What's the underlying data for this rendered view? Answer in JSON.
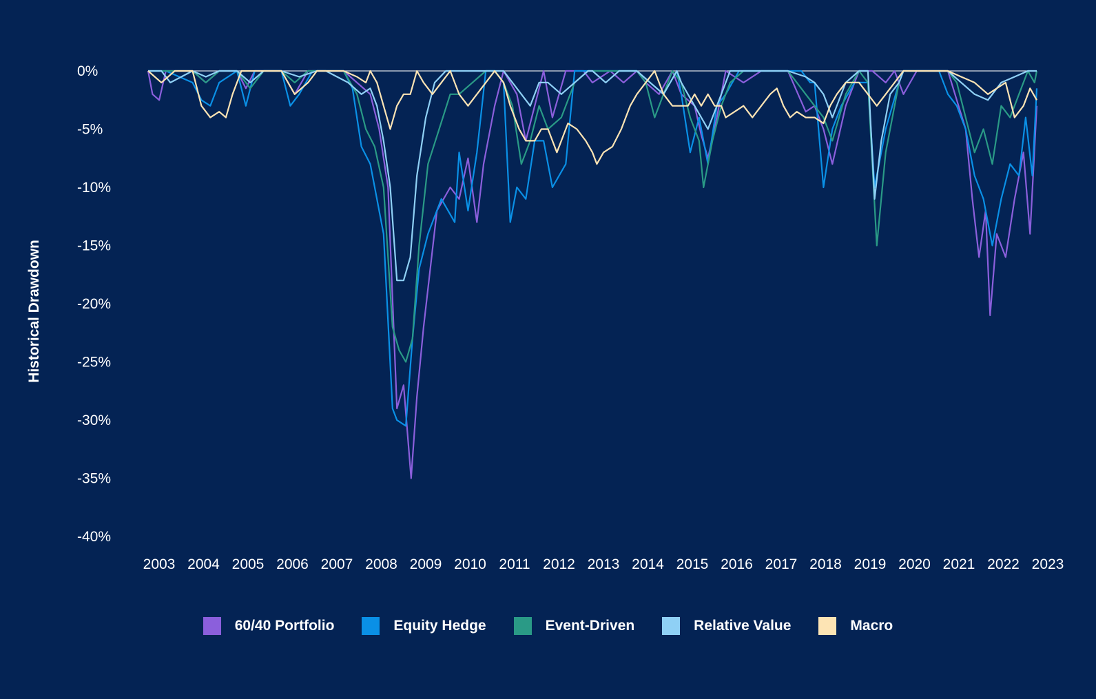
{
  "chart_data": {
    "type": "line",
    "title": "",
    "xlabel": "",
    "ylabel": "Historical Drawdown",
    "ylim": [
      -40,
      0
    ],
    "xlim": [
      2003.0,
      2023.0
    ],
    "yticks": [
      0,
      -5,
      -10,
      -15,
      -20,
      -25,
      -30,
      -35,
      -40
    ],
    "ytick_labels": [
      "0%",
      "-5%",
      "-10%",
      "-15%",
      "-20%",
      "-25%",
      "-30%",
      "-35%",
      "-40%"
    ],
    "xticks": [
      2003,
      2004,
      2005,
      2006,
      2007,
      2008,
      2009,
      2010,
      2011,
      2012,
      2013,
      2014,
      2015,
      2016,
      2017,
      2018,
      2019,
      2020,
      2021,
      2022,
      2023
    ],
    "xtick_labels": [
      "2003",
      "2004",
      "2005",
      "2006",
      "2007",
      "2008",
      "2009",
      "2010",
      "2011",
      "2012",
      "2013",
      "2014",
      "2015",
      "2016",
      "2017",
      "2018",
      "2019",
      "2020",
      "2021",
      "2022",
      "2023"
    ],
    "legend_position": "bottom-center",
    "series": [
      {
        "name": "60/40 Portfolio",
        "color": "#8b5fdc",
        "x": [
          2003.0,
          2003.1,
          2003.25,
          2003.4,
          2004.0,
          2004.3,
          2004.6,
          2005.0,
          2005.2,
          2005.4,
          2005.7,
          2006.0,
          2006.3,
          2006.6,
          2007.0,
          2007.4,
          2007.7,
          2008.0,
          2008.2,
          2008.4,
          2008.6,
          2008.75,
          2008.92,
          2009.05,
          2009.2,
          2009.5,
          2009.8,
          2010.0,
          2010.2,
          2010.4,
          2010.55,
          2010.8,
          2011.0,
          2011.3,
          2011.5,
          2011.7,
          2011.9,
          2012.1,
          2012.4,
          2012.8,
          2013.0,
          2013.4,
          2013.7,
          2014.0,
          2014.2,
          2014.5,
          2014.8,
          2015.0,
          2015.3,
          2015.45,
          2015.6,
          2015.8,
          2016.0,
          2016.4,
          2016.8,
          2017.0,
          2017.4,
          2017.8,
          2018.0,
          2018.2,
          2018.4,
          2018.7,
          2019.0,
          2019.3,
          2019.6,
          2019.8,
          2020.0,
          2020.3,
          2020.6,
          2021.0,
          2021.2,
          2021.4,
          2021.55,
          2021.7,
          2021.85,
          2021.95,
          2022.1,
          2022.3,
          2022.5,
          2022.7,
          2022.85,
          2023.0
        ],
        "values": [
          0,
          -2,
          -2.5,
          0,
          0,
          -1,
          0,
          0,
          -1.5,
          0,
          0,
          0,
          -2,
          0,
          0,
          0,
          -1,
          -2,
          -5,
          -10,
          -29,
          -27,
          -35,
          -28,
          -22,
          -12,
          -10,
          -11,
          -7.5,
          -13,
          -8,
          -3,
          0,
          -2,
          -6,
          -3,
          0,
          -4,
          0,
          0,
          -1,
          0,
          -1,
          0,
          -1,
          -2,
          0,
          -2,
          -3,
          -5.5,
          -7.5,
          -4,
          0,
          -1,
          0,
          0,
          0,
          -3.5,
          -3,
          -5,
          -8,
          -3,
          0,
          0,
          -1,
          0,
          -2,
          0,
          0,
          0,
          -2.5,
          -5,
          -11,
          -16,
          -12,
          -21,
          -14,
          -16,
          -11,
          -7,
          -14,
          -3
        ]
      },
      {
        "name": "Equity Hedge",
        "color": "#0a90e6",
        "x": [
          2003.0,
          2003.4,
          2004.0,
          2004.2,
          2004.4,
          2004.6,
          2005.0,
          2005.2,
          2005.4,
          2006.0,
          2006.2,
          2006.4,
          2006.7,
          2007.0,
          2007.4,
          2007.6,
          2007.8,
          2008.0,
          2008.3,
          2008.5,
          2008.6,
          2008.8,
          2008.95,
          2009.1,
          2009.3,
          2009.6,
          2009.9,
          2010.0,
          2010.2,
          2010.4,
          2010.6,
          2010.8,
          2011.0,
          2011.15,
          2011.3,
          2011.5,
          2011.7,
          2011.9,
          2012.1,
          2012.4,
          2012.6,
          2012.8,
          2013.0,
          2013.3,
          2013.6,
          2014.0,
          2014.3,
          2014.6,
          2014.9,
          2015.0,
          2015.2,
          2015.4,
          2015.6,
          2015.8,
          2016.0,
          2016.3,
          2016.6,
          2017.0,
          2017.4,
          2017.7,
          2017.9,
          2018.0,
          2018.2,
          2018.4,
          2018.6,
          2018.9,
          2019.2,
          2019.35,
          2019.6,
          2019.9,
          2020.0,
          2020.4,
          2020.8,
          2021.0,
          2021.2,
          2021.4,
          2021.6,
          2021.8,
          2022.0,
          2022.2,
          2022.4,
          2022.6,
          2022.75,
          2022.9,
          2023.0
        ],
        "values": [
          0,
          0,
          -1,
          -2.5,
          -3,
          -1,
          0,
          -3,
          0,
          0,
          -3,
          -2,
          0,
          0,
          0,
          -1.5,
          -6.5,
          -8,
          -14,
          -29,
          -30,
          -30.5,
          -23,
          -17,
          -14,
          -11,
          -13,
          -7,
          -12,
          -7,
          0,
          0,
          -1,
          -13,
          -10,
          -11,
          -6,
          -6,
          -10,
          -8,
          0,
          0,
          0,
          0,
          0,
          0,
          -1,
          -2,
          0,
          -2,
          -7,
          -4,
          -8,
          -3,
          -2,
          0,
          0,
          0,
          0,
          0,
          -1,
          -1,
          -10,
          -5,
          -3,
          -1,
          -1,
          -10,
          -5,
          -1,
          0,
          0,
          0,
          -2,
          -3,
          -5,
          -9,
          -11,
          -15,
          -11,
          -8,
          -9,
          -4,
          -9,
          -1.5
        ]
      },
      {
        "name": "Event-Driven",
        "color": "#2a9a86",
        "x": [
          2003.0,
          2003.4,
          2004.0,
          2004.3,
          2004.6,
          2005.0,
          2005.3,
          2005.6,
          2006.0,
          2006.3,
          2006.6,
          2007.0,
          2007.4,
          2007.7,
          2007.9,
          2008.1,
          2008.3,
          2008.5,
          2008.65,
          2008.8,
          2008.95,
          2009.1,
          2009.3,
          2009.55,
          2009.8,
          2010.0,
          2010.3,
          2010.6,
          2010.8,
          2011.0,
          2011.2,
          2011.4,
          2011.6,
          2011.8,
          2012.0,
          2012.3,
          2012.6,
          2012.9,
          2013.0,
          2013.3,
          2013.6,
          2014.0,
          2014.2,
          2014.4,
          2014.6,
          2014.8,
          2015.0,
          2015.2,
          2015.4,
          2015.5,
          2015.7,
          2015.9,
          2016.1,
          2016.4,
          2016.8,
          2017.0,
          2017.4,
          2017.8,
          2018.0,
          2018.2,
          2018.4,
          2018.7,
          2019.0,
          2019.2,
          2019.4,
          2019.6,
          2019.9,
          2020.0,
          2020.5,
          2021.0,
          2021.2,
          2021.4,
          2021.6,
          2021.8,
          2022.0,
          2022.2,
          2022.4,
          2022.6,
          2022.8,
          2022.95,
          2023.0
        ],
        "values": [
          0,
          0,
          0,
          -1,
          0,
          0,
          -1.5,
          0,
          0,
          -1,
          0,
          0,
          0,
          -2,
          -5,
          -6.5,
          -10,
          -22,
          -24,
          -25,
          -23,
          -15,
          -8,
          -5,
          -2,
          -2,
          -1,
          0,
          0,
          -1,
          -3,
          -8,
          -6,
          -3,
          -5,
          -4,
          -1,
          0,
          0,
          0,
          0,
          0,
          -1,
          -4,
          -2,
          0,
          -1,
          -4,
          -6,
          -10,
          -6,
          -3,
          -1,
          0,
          0,
          0,
          0,
          -2,
          -3,
          -4,
          -6,
          -2,
          0,
          -1,
          -15,
          -7,
          -1,
          0,
          0,
          0,
          -1,
          -4,
          -7,
          -5,
          -8,
          -3,
          -4,
          -2,
          0,
          -1,
          0
        ]
      },
      {
        "name": "Relative Value",
        "color": "#8fd0f5",
        "x": [
          2003.0,
          2003.3,
          2003.5,
          2004.0,
          2004.3,
          2004.6,
          2005.0,
          2005.3,
          2005.6,
          2006.0,
          2006.4,
          2006.8,
          2007.0,
          2007.5,
          2007.8,
          2008.0,
          2008.15,
          2008.3,
          2008.45,
          2008.6,
          2008.75,
          2008.9,
          2009.05,
          2009.25,
          2009.45,
          2009.7,
          2010.0,
          2010.3,
          2010.6,
          2010.8,
          2011.0,
          2011.2,
          2011.4,
          2011.6,
          2011.8,
          2012.0,
          2012.3,
          2012.6,
          2012.9,
          2013.0,
          2013.3,
          2013.6,
          2014.0,
          2014.3,
          2014.6,
          2014.9,
          2015.0,
          2015.3,
          2015.6,
          2015.9,
          2016.1,
          2016.4,
          2016.8,
          2017.0,
          2017.4,
          2017.8,
          2018.0,
          2018.2,
          2018.4,
          2018.7,
          2019.0,
          2019.2,
          2019.35,
          2019.5,
          2019.7,
          2019.9,
          2020.0,
          2020.5,
          2021.0,
          2021.3,
          2021.6,
          2021.9,
          2022.2,
          2022.5,
          2022.8,
          2023.0
        ],
        "values": [
          0,
          0,
          -1,
          0,
          -0.5,
          0,
          0,
          -1,
          0,
          0,
          -0.5,
          0,
          0,
          -1,
          -2,
          -1.5,
          -3,
          -6,
          -10,
          -18,
          -18,
          -16,
          -9,
          -4,
          -1,
          0,
          0,
          0,
          0,
          0,
          0,
          -1,
          -2,
          -3,
          -1,
          -1,
          -2,
          -1,
          0,
          0,
          -1,
          0,
          0,
          -1,
          -2,
          0,
          -1,
          -3,
          -5,
          -2,
          0,
          0,
          0,
          0,
          0,
          -0.5,
          -1,
          -2,
          -4,
          -1,
          0,
          0,
          -11,
          -6,
          -2,
          -1,
          0,
          0,
          0,
          -1,
          -2,
          -2.5,
          -1,
          -0.5,
          0,
          0
        ]
      },
      {
        "name": "Macro",
        "color": "#fde4b4",
        "x": [
          2003.0,
          2003.3,
          2003.6,
          2004.0,
          2004.2,
          2004.4,
          2004.6,
          2004.75,
          2004.9,
          2005.1,
          2005.3,
          2005.6,
          2006.0,
          2006.3,
          2006.6,
          2006.8,
          2007.0,
          2007.4,
          2007.7,
          2007.9,
          2008.0,
          2008.15,
          2008.3,
          2008.45,
          2008.6,
          2008.75,
          2008.9,
          2009.05,
          2009.2,
          2009.4,
          2009.6,
          2009.8,
          2010.0,
          2010.2,
          2010.4,
          2010.6,
          2010.8,
          2011.0,
          2011.15,
          2011.35,
          2011.5,
          2011.7,
          2011.85,
          2012.0,
          2012.2,
          2012.45,
          2012.65,
          2012.85,
          2013.0,
          2013.1,
          2013.25,
          2013.45,
          2013.65,
          2013.85,
          2014.0,
          2014.2,
          2014.4,
          2014.6,
          2014.8,
          2015.0,
          2015.15,
          2015.3,
          2015.45,
          2015.6,
          2015.75,
          2015.9,
          2016.0,
          2016.2,
          2016.4,
          2016.6,
          2016.8,
          2017.0,
          2017.15,
          2017.3,
          2017.45,
          2017.6,
          2017.8,
          2018.0,
          2018.2,
          2018.35,
          2018.5,
          2018.7,
          2019.0,
          2019.2,
          2019.4,
          2019.6,
          2019.8,
          2020.0,
          2020.5,
          2021.0,
          2021.3,
          2021.6,
          2021.9,
          2022.1,
          2022.3,
          2022.5,
          2022.7,
          2022.85,
          2023.0
        ],
        "values": [
          0,
          -1,
          0,
          0,
          -3,
          -4,
          -3.5,
          -4,
          -2,
          0,
          0,
          0,
          0,
          -2,
          -1,
          0,
          0,
          0,
          -0.5,
          -1,
          0,
          -1,
          -3,
          -5,
          -3,
          -2,
          -2,
          0,
          -1,
          -2,
          -1,
          0,
          -2,
          -3,
          -2,
          -1,
          0,
          -1,
          -3,
          -5,
          -6,
          -6,
          -5,
          -5,
          -7,
          -4.5,
          -5,
          -6,
          -7,
          -8,
          -7,
          -6.5,
          -5,
          -3,
          -2,
          -1,
          0,
          -2,
          -3,
          -3,
          -3,
          -2,
          -3,
          -2,
          -3,
          -3,
          -4,
          -3.5,
          -3,
          -4,
          -3,
          -2,
          -1.5,
          -3,
          -4,
          -3.5,
          -4,
          -4,
          -4.5,
          -3,
          -2,
          -1,
          -1,
          -2,
          -3,
          -2,
          -1,
          0,
          0,
          0,
          -0.5,
          -1,
          -2,
          -1.5,
          -1,
          -4,
          -3,
          -1.5,
          -2.5
        ]
      }
    ]
  }
}
